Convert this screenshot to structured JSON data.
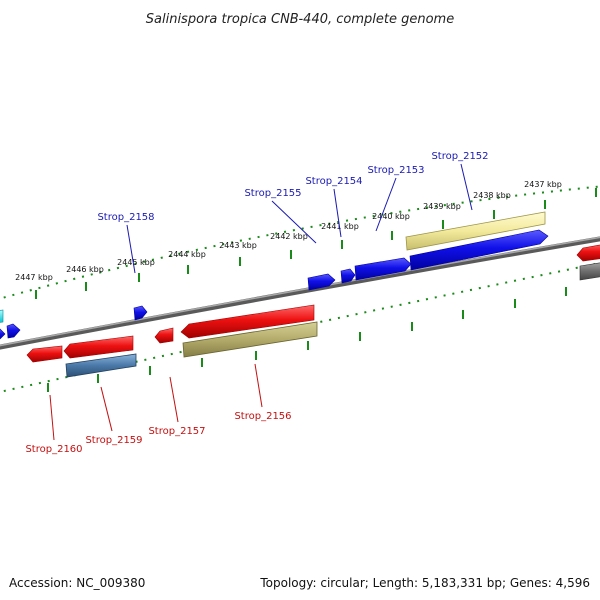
{
  "title": "Salinispora tropica CNB-440, complete genome",
  "footer": {
    "accession": "Accession: NC_009380",
    "summary": "Topology: circular; Length: 5,183,331 bp; Genes: 4,596"
  },
  "scale_labels": {
    "upper": [
      "2447 kbp",
      "2446 kbp",
      "2445 kbp",
      "2444 kbp",
      "2443 kbp",
      "2442 kbp",
      "2441 kbp",
      "2440 kbp",
      "2439 kbp",
      "2438 kbp",
      "2437 kbp"
    ]
  },
  "gene_labels": {
    "top": [
      "Strop_2158",
      "Strop_2155",
      "Strop_2154",
      "Strop_2153",
      "Strop_2152"
    ],
    "bottom": [
      "Strop_2160",
      "Strop_2159",
      "Strop_2157",
      "Strop_2156"
    ]
  },
  "colors": {
    "forward_gene": "#1010e0",
    "reverse_gene": "#e01010",
    "forward_cds": "#f2eaa0",
    "reverse_cds": "#b8b070",
    "reverse_cds_alt": "#4a78a8",
    "backbone": "#7a7a7a",
    "tick": "#1a8a1a",
    "top_label": "#1a1ab3",
    "bottom_label": "#c41010"
  }
}
